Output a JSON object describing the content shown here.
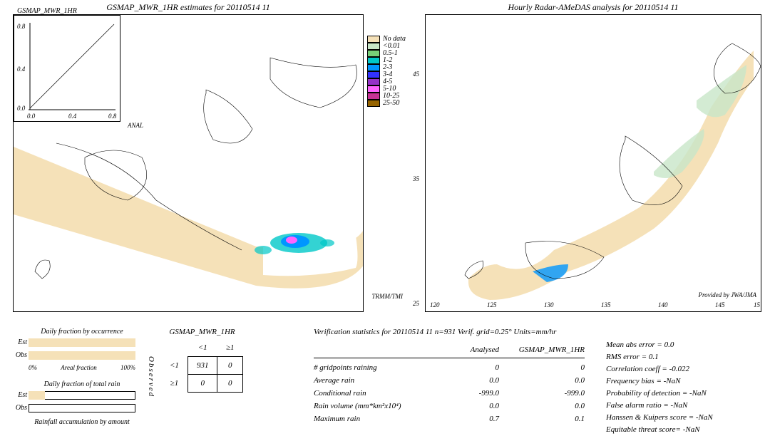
{
  "maps": {
    "left": {
      "title": "GSMAP_MWR_1HR estimates for 20110514 11",
      "inset_title": "GSMAP_MWR_1HR",
      "inset_yticks": [
        "0.8",
        "0.4",
        "0.0"
      ],
      "inset_xticks": [
        "0.0",
        "0.4",
        "0.8"
      ],
      "inset_xlabel": "ANAL",
      "swath_color": "#f5e1b8",
      "swath_label": "TRMM/TMI"
    },
    "right": {
      "title": "Hourly Radar-AMeDAS analysis for 20110514 11",
      "xticks": [
        "120",
        "125",
        "130",
        "135",
        "140",
        "145",
        "15"
      ],
      "yticks": [
        "45",
        "35",
        "25"
      ],
      "credit": "Provided by JWA/JMA"
    },
    "legend": [
      {
        "color": "#f5e1b8",
        "label": "No data"
      },
      {
        "color": "#c8e6c8",
        "label": "<0.01"
      },
      {
        "color": "#78d078",
        "label": "0.5-1"
      },
      {
        "color": "#00c8c8",
        "label": "1-2"
      },
      {
        "color": "#0096ff",
        "label": "2-3"
      },
      {
        "color": "#3232ff",
        "label": "3-4"
      },
      {
        "color": "#9632c8",
        "label": "4-5"
      },
      {
        "color": "#ff64ff",
        "label": "5-10"
      },
      {
        "color": "#c83296",
        "label": "10-25"
      },
      {
        "color": "#966400",
        "label": "25-50"
      }
    ]
  },
  "bars": {
    "occurrence_title": "Daily fraction by occurrence",
    "totalrain_title": "Daily fraction of total rain",
    "accum_title": "Rainfall accumulation by amount",
    "axis_labels": {
      "left": "0%",
      "center": "Areal fraction",
      "right": "100%"
    },
    "rows": {
      "est": "Est",
      "obs": "Obs"
    },
    "fill_color": "#f5e1b8",
    "occurrence": {
      "est": 100,
      "obs": 100
    },
    "totalrain": {
      "est": 15,
      "obs": 0
    }
  },
  "contingency": {
    "header": "GSMAP_MWR_1HR",
    "row_label": "Observed",
    "col1": "<1",
    "col2": "≥1",
    "cells": [
      [
        "931",
        "0"
      ],
      [
        "0",
        "0"
      ]
    ]
  },
  "verif": {
    "header": "Verification statistics for 20110514 11  n=931  Verif. grid=0.25°  Units=mm/hr",
    "col1_header": "Analysed",
    "col2_header": "GSMAP_MWR_1HR",
    "rows": [
      {
        "name": "# gridpoints raining",
        "v1": "0",
        "v2": "0"
      },
      {
        "name": "Average rain",
        "v1": "0.0",
        "v2": "0.0"
      },
      {
        "name": "Conditional rain",
        "v1": "-999.0",
        "v2": "-999.0"
      },
      {
        "name": "Rain volume (mm*km²x10⁴)",
        "v1": "0.0",
        "v2": "0.0"
      },
      {
        "name": "Maximum rain",
        "v1": "0.7",
        "v2": "0.1"
      }
    ],
    "scores": [
      "Mean abs error = 0.0",
      "RMS error = 0.1",
      "Correlation coeff = -0.022",
      "Frequency bias = -NaN",
      "Probability of detection = -NaN",
      "False alarm ratio = -NaN",
      "Hanssen & Kuipers score = -NaN",
      "Equitable threat score= -NaN"
    ]
  }
}
